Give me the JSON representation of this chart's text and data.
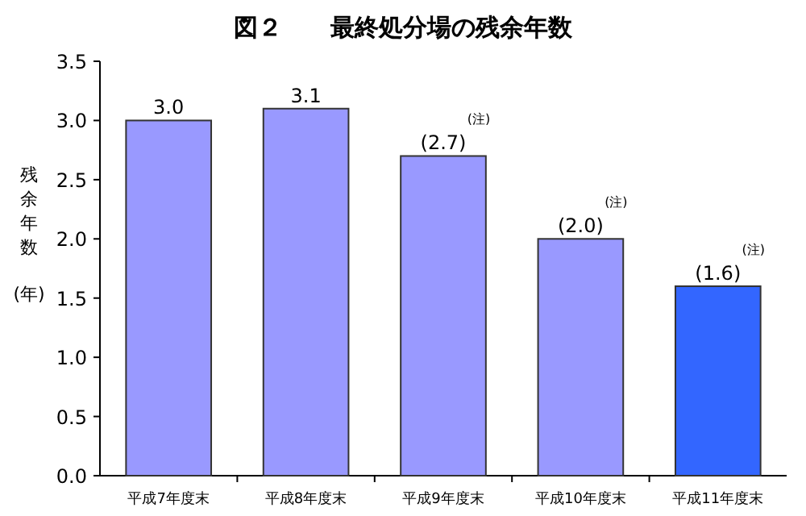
{
  "chart_data": {
    "type": "bar",
    "title": "図２　　最終処分場の残余年数",
    "ylabel": "残余年数(年)",
    "categories": [
      "平成7年度末",
      "平成8年度末",
      "平成9年度末",
      "平成10年度末",
      "平成11年度末"
    ],
    "values": [
      3.0,
      3.1,
      2.7,
      2.0,
      1.6
    ],
    "colors": [
      "#9999ff",
      "#9999ff",
      "#9999ff",
      "#9999ff",
      "#3366ff"
    ],
    "value_labels": [
      "3.0",
      "3.1",
      "(2.7)",
      "(2.0)",
      "(1.6)"
    ],
    "annotations": [
      "(注)",
      "(注)",
      "(注)"
    ],
    "ylim": [
      0,
      3.5
    ],
    "yticks": [
      {
        "value": 0,
        "label": "0.0"
      },
      {
        "value": 0.5,
        "label": "0.5"
      },
      {
        "value": 1,
        "label": "1.0"
      },
      {
        "value": 1.5,
        "label": "1.5"
      },
      {
        "value": 2,
        "label": "2.0"
      },
      {
        "value": 2.5,
        "label": "2.5"
      },
      {
        "value": 3,
        "label": "3.0"
      },
      {
        "value": 3.5,
        "label": "3.5"
      }
    ]
  }
}
